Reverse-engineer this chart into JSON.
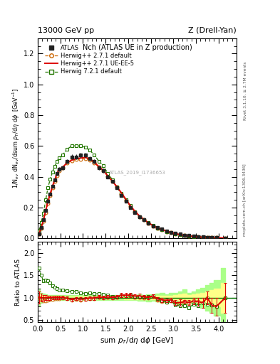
{
  "title_top_left": "13000 GeV pp",
  "title_top_right": "Z (Drell-Yan)",
  "plot_title": "Nch (ATLAS UE in Z production)",
  "xlabel": "sum $p_T$/d$\\eta$ d$\\phi$ [GeV]",
  "ylabel_main": "1/N$_{ev}$ dN$_{ev}$/dsum $p_T$/d$\\eta$ d$\\phi$  [GeV$^{-1}$]",
  "ylabel_ratio": "Ratio to ATLAS",
  "right_label1": "Rivet 3.1.10, ≥ 2.7M events",
  "right_label2": "mcplots.cern.ch [arXiv:1306.3436]",
  "watermark": "ATLAS_2019_I1736653",
  "xlim": [
    0,
    4.4
  ],
  "ylim_main": [
    0,
    1.3
  ],
  "ylim_ratio": [
    0.45,
    2.25
  ],
  "yticks_main": [
    0.0,
    0.2,
    0.4,
    0.6,
    0.8,
    1.0,
    1.2
  ],
  "yticks_ratio": [
    0.5,
    1.0,
    1.5,
    2.0
  ],
  "atlas_x": [
    0.025,
    0.075,
    0.125,
    0.175,
    0.225,
    0.275,
    0.325,
    0.375,
    0.425,
    0.475,
    0.55,
    0.65,
    0.75,
    0.85,
    0.95,
    1.05,
    1.15,
    1.25,
    1.35,
    1.45,
    1.55,
    1.65,
    1.75,
    1.85,
    1.95,
    2.05,
    2.15,
    2.25,
    2.35,
    2.45,
    2.55,
    2.65,
    2.75,
    2.85,
    2.95,
    3.05,
    3.15,
    3.25,
    3.35,
    3.45,
    3.55,
    3.65,
    3.75,
    3.85,
    3.95,
    4.15
  ],
  "atlas_y": [
    0.03,
    0.07,
    0.12,
    0.18,
    0.24,
    0.29,
    0.34,
    0.38,
    0.42,
    0.45,
    0.46,
    0.5,
    0.53,
    0.53,
    0.54,
    0.54,
    0.52,
    0.5,
    0.46,
    0.44,
    0.4,
    0.37,
    0.33,
    0.28,
    0.24,
    0.2,
    0.17,
    0.14,
    0.12,
    0.1,
    0.08,
    0.07,
    0.06,
    0.05,
    0.04,
    0.035,
    0.028,
    0.022,
    0.018,
    0.014,
    0.011,
    0.009,
    0.007,
    0.006,
    0.005,
    0.003
  ],
  "atlas_yerr": [
    0.003,
    0.004,
    0.005,
    0.007,
    0.008,
    0.009,
    0.01,
    0.01,
    0.012,
    0.013,
    0.013,
    0.014,
    0.015,
    0.015,
    0.015,
    0.015,
    0.014,
    0.014,
    0.013,
    0.012,
    0.011,
    0.01,
    0.009,
    0.008,
    0.007,
    0.006,
    0.005,
    0.005,
    0.004,
    0.004,
    0.003,
    0.003,
    0.003,
    0.002,
    0.002,
    0.002,
    0.002,
    0.002,
    0.001,
    0.001,
    0.001,
    0.001,
    0.001,
    0.001,
    0.001,
    0.001
  ],
  "hw271_x": [
    0.025,
    0.075,
    0.125,
    0.175,
    0.225,
    0.275,
    0.325,
    0.375,
    0.425,
    0.475,
    0.55,
    0.65,
    0.75,
    0.85,
    0.95,
    1.05,
    1.15,
    1.25,
    1.35,
    1.45,
    1.55,
    1.65,
    1.75,
    1.85,
    1.95,
    2.05,
    2.15,
    2.25,
    2.35,
    2.45,
    2.55,
    2.65,
    2.75,
    2.85,
    2.95,
    3.05,
    3.15,
    3.25,
    3.35,
    3.45,
    3.55,
    3.65,
    3.75,
    3.85,
    3.95,
    4.15
  ],
  "hw271_y": [
    0.03,
    0.068,
    0.112,
    0.168,
    0.228,
    0.278,
    0.328,
    0.37,
    0.41,
    0.442,
    0.458,
    0.49,
    0.505,
    0.512,
    0.515,
    0.52,
    0.51,
    0.492,
    0.462,
    0.44,
    0.402,
    0.37,
    0.332,
    0.29,
    0.248,
    0.208,
    0.172,
    0.142,
    0.12,
    0.1,
    0.082,
    0.066,
    0.055,
    0.045,
    0.037,
    0.03,
    0.024,
    0.02,
    0.016,
    0.013,
    0.01,
    0.008,
    0.007,
    0.005,
    0.004,
    0.003
  ],
  "hw271ue_x": [
    0.025,
    0.075,
    0.125,
    0.175,
    0.225,
    0.275,
    0.325,
    0.375,
    0.425,
    0.475,
    0.55,
    0.65,
    0.75,
    0.85,
    0.95,
    1.05,
    1.15,
    1.25,
    1.35,
    1.45,
    1.55,
    1.65,
    1.75,
    1.85,
    1.95,
    2.05,
    2.15,
    2.25,
    2.35,
    2.45,
    2.55,
    2.65,
    2.75,
    2.85,
    2.95,
    3.05,
    3.15,
    3.25,
    3.35,
    3.45,
    3.55,
    3.65,
    3.75,
    3.85,
    3.95,
    4.15
  ],
  "hw271ue_y": [
    0.03,
    0.07,
    0.12,
    0.18,
    0.24,
    0.29,
    0.34,
    0.38,
    0.42,
    0.45,
    0.462,
    0.492,
    0.508,
    0.518,
    0.522,
    0.526,
    0.516,
    0.496,
    0.466,
    0.442,
    0.406,
    0.372,
    0.336,
    0.296,
    0.254,
    0.212,
    0.176,
    0.146,
    0.122,
    0.101,
    0.083,
    0.068,
    0.057,
    0.047,
    0.038,
    0.031,
    0.025,
    0.02,
    0.016,
    0.013,
    0.01,
    0.008,
    0.007,
    0.005,
    0.004,
    0.003
  ],
  "hw271ue_yerr": [
    0.004,
    0.006,
    0.008,
    0.01,
    0.012,
    0.014,
    0.015,
    0.016,
    0.017,
    0.018,
    0.018,
    0.019,
    0.02,
    0.02,
    0.02,
    0.021,
    0.02,
    0.02,
    0.018,
    0.017,
    0.016,
    0.014,
    0.013,
    0.012,
    0.01,
    0.009,
    0.007,
    0.006,
    0.005,
    0.004,
    0.003,
    0.003,
    0.003,
    0.002,
    0.002,
    0.002,
    0.002,
    0.001,
    0.001,
    0.001,
    0.001,
    0.001,
    0.001,
    0.001,
    0.001,
    0.001
  ],
  "hw721_x": [
    0.025,
    0.075,
    0.125,
    0.175,
    0.225,
    0.275,
    0.325,
    0.375,
    0.425,
    0.475,
    0.55,
    0.65,
    0.75,
    0.85,
    0.95,
    1.05,
    1.15,
    1.25,
    1.35,
    1.45,
    1.55,
    1.65,
    1.75,
    1.85,
    1.95,
    2.05,
    2.15,
    2.25,
    2.35,
    2.45,
    2.55,
    2.65,
    2.75,
    2.85,
    2.95,
    3.05,
    3.15,
    3.25,
    3.35,
    3.45,
    3.55,
    3.65,
    3.75,
    3.85,
    3.95,
    4.15
  ],
  "hw721_y": [
    0.05,
    0.105,
    0.165,
    0.25,
    0.33,
    0.385,
    0.43,
    0.47,
    0.502,
    0.525,
    0.542,
    0.58,
    0.6,
    0.602,
    0.6,
    0.592,
    0.572,
    0.542,
    0.502,
    0.472,
    0.422,
    0.382,
    0.332,
    0.292,
    0.252,
    0.212,
    0.172,
    0.142,
    0.122,
    0.102,
    0.084,
    0.068,
    0.056,
    0.045,
    0.037,
    0.029,
    0.023,
    0.018,
    0.014,
    0.012,
    0.009,
    0.008,
    0.006,
    0.005,
    0.004,
    0.003
  ],
  "atlas_color": "#222222",
  "hw271_color": "#cc6600",
  "hw271ue_color": "#dd0000",
  "hw721_color": "#227700",
  "atlas_band_yellow": "#ffff88",
  "atlas_band_green": "#aaff88",
  "legend_labels": [
    "ATLAS",
    "Herwig++ 2.7.1 default",
    "Herwig++ 2.7.1 UE-EE-5",
    "Herwig 7.2.1 default"
  ]
}
